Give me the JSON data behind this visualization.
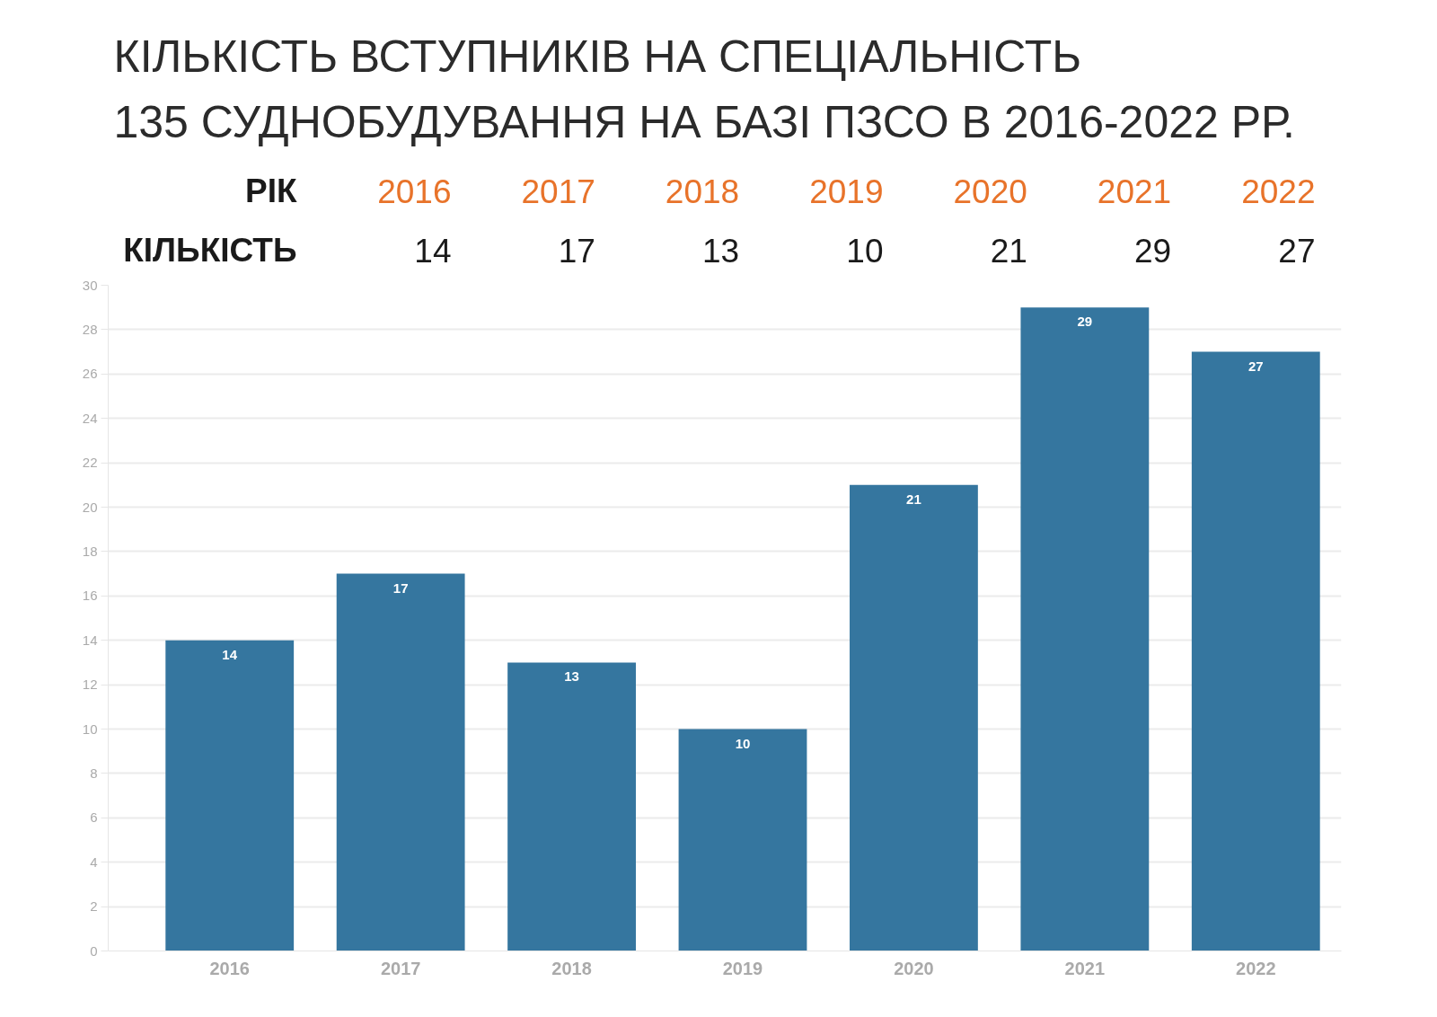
{
  "chart_data": [
    {
      "type": "heatmap",
      "title": "КІЛЬКІСТЬ ВСТУПНИКІВ НА СПЕЦІАЛЬНІСТЬ\n135 СУДНОБУДУВАННЯ НА БАЗІ ПЗСО В 2016-2022 РР.",
      "xlabel": "РІК",
      "categories": [
        "2016",
        "2017",
        "2018",
        "2019",
        "2020",
        "2021",
        "2022"
      ],
      "y_categories": [
        "КІЛЬКІСТЬ"
      ],
      "cells": [
        [
          14,
          17,
          13,
          10,
          21,
          29,
          27
        ]
      ],
      "data_labels": true
    },
    {
      "type": "bar",
      "categories": [
        "2016",
        "2017",
        "2018",
        "2019",
        "2020",
        "2021",
        "2022"
      ],
      "values": [
        14,
        17,
        13,
        10,
        21,
        29,
        27
      ],
      "color": "#35769f",
      "ylim": [
        0,
        30
      ],
      "yticks": [
        0,
        2,
        4,
        6,
        8,
        10,
        12,
        14,
        16,
        18,
        20,
        22,
        24,
        26,
        28,
        30
      ],
      "grid": "y",
      "data_labels": true
    }
  ]
}
